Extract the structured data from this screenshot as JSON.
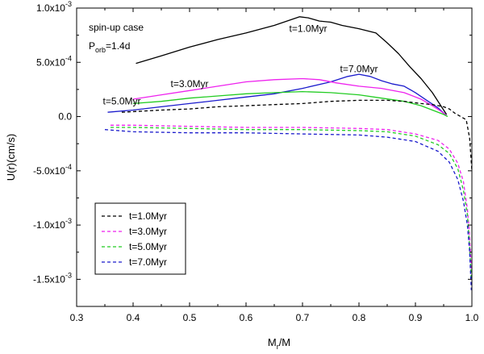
{
  "chart_data": {
    "type": "line",
    "xlabel_main": "M",
    "xlabel_sub": "r",
    "xlabel_tail": "/M",
    "ylabel": "U(r)(cm/s)",
    "xlim": [
      0.3,
      1.0
    ],
    "ylim": [
      -0.00175,
      0.001
    ],
    "x_ticks": [
      {
        "v": 0.3,
        "label": "0.3"
      },
      {
        "v": 0.4,
        "label": "0.4"
      },
      {
        "v": 0.5,
        "label": "0.5"
      },
      {
        "v": 0.6,
        "label": "0.6"
      },
      {
        "v": 0.7,
        "label": "0.7"
      },
      {
        "v": 0.8,
        "label": "0.8"
      },
      {
        "v": 0.9,
        "label": "0.9"
      },
      {
        "v": 1.0,
        "label": "1.0"
      }
    ],
    "y_ticks": [
      {
        "v": 0.001,
        "mant": "1.0x10",
        "exp": "-3"
      },
      {
        "v": 0.0005,
        "mant": "5.0x10",
        "exp": "-4"
      },
      {
        "v": 0.0,
        "mant": "0.0",
        "exp": ""
      },
      {
        "v": -0.0005,
        "mant": "-5.0x10",
        "exp": "-4"
      },
      {
        "v": -0.001,
        "mant": "-1.0x10",
        "exp": "-3"
      },
      {
        "v": -0.0015,
        "mant": "-1.5x10",
        "exp": "-3"
      }
    ],
    "case_label": "spin-up case",
    "porb_main": "P",
    "porb_sub": "orb",
    "porb_tail": "=1.4d",
    "annotations": [
      {
        "text": "t=1.0Myr",
        "x": 0.71,
        "y": 0.00078
      },
      {
        "text": "t=7.0Myr",
        "x": 0.8,
        "y": 0.00041
      },
      {
        "text": "t=3.0Myr",
        "x": 0.5,
        "y": 0.00027
      },
      {
        "text": "t=5.0Myr",
        "x": 0.38,
        "y": 0.00011
      }
    ],
    "series": [
      {
        "name": "t=1.0Myr",
        "color": "#000000",
        "style": "solid",
        "points": [
          [
            0.405,
            0.00049
          ],
          [
            0.45,
            0.00056
          ],
          [
            0.5,
            0.00064
          ],
          [
            0.55,
            0.00071
          ],
          [
            0.6,
            0.00077
          ],
          [
            0.65,
            0.00084
          ],
          [
            0.695,
            0.00092
          ],
          [
            0.71,
            0.00091
          ],
          [
            0.73,
            0.00088
          ],
          [
            0.75,
            0.00087
          ],
          [
            0.77,
            0.00084
          ],
          [
            0.8,
            0.00081
          ],
          [
            0.83,
            0.00077
          ],
          [
            0.85,
            0.00068
          ],
          [
            0.87,
            0.00058
          ],
          [
            0.89,
            0.00046
          ],
          [
            0.91,
            0.00035
          ],
          [
            0.93,
            0.00022
          ],
          [
            0.945,
            0.0001
          ],
          [
            0.955,
            2e-05
          ]
        ]
      },
      {
        "name": "t=7.0Myr",
        "color": "#1a1acc",
        "style": "solid",
        "points": [
          [
            0.355,
            4e-05
          ],
          [
            0.4,
            6e-05
          ],
          [
            0.45,
            9e-05
          ],
          [
            0.5,
            0.00012
          ],
          [
            0.55,
            0.00015
          ],
          [
            0.6,
            0.00018
          ],
          [
            0.65,
            0.00021
          ],
          [
            0.7,
            0.00026
          ],
          [
            0.75,
            0.00032
          ],
          [
            0.78,
            0.00037
          ],
          [
            0.8,
            0.00039
          ],
          [
            0.82,
            0.00037
          ],
          [
            0.84,
            0.00033
          ],
          [
            0.86,
            0.0003
          ],
          [
            0.88,
            0.00028
          ],
          [
            0.9,
            0.00022
          ],
          [
            0.92,
            0.00015
          ],
          [
            0.94,
            8e-05
          ],
          [
            0.955,
            1e-05
          ]
        ]
      },
      {
        "name": "t=3.0Myr",
        "color": "#ee22ee",
        "style": "solid",
        "points": [
          [
            0.4,
            0.00016
          ],
          [
            0.45,
            0.0002
          ],
          [
            0.5,
            0.00024
          ],
          [
            0.55,
            0.00028
          ],
          [
            0.6,
            0.00032
          ],
          [
            0.65,
            0.00034
          ],
          [
            0.7,
            0.00035
          ],
          [
            0.73,
            0.00034
          ],
          [
            0.76,
            0.00031
          ],
          [
            0.8,
            0.00028
          ],
          [
            0.84,
            0.00026
          ],
          [
            0.88,
            0.00022
          ],
          [
            0.91,
            0.00016
          ],
          [
            0.93,
            0.0001
          ],
          [
            0.945,
            5e-05
          ],
          [
            0.955,
            1e-05
          ]
        ]
      },
      {
        "name": "t=5.0Myr",
        "color": "#22cc22",
        "style": "solid",
        "points": [
          [
            0.4,
            0.00012
          ],
          [
            0.45,
            0.00014
          ],
          [
            0.5,
            0.00017
          ],
          [
            0.55,
            0.00019
          ],
          [
            0.6,
            0.00021
          ],
          [
            0.65,
            0.00022
          ],
          [
            0.7,
            0.00023
          ],
          [
            0.75,
            0.00022
          ],
          [
            0.8,
            0.0002
          ],
          [
            0.84,
            0.00017
          ],
          [
            0.88,
            0.00014
          ],
          [
            0.91,
            0.0001
          ],
          [
            0.93,
            6e-05
          ],
          [
            0.95,
            2e-05
          ],
          [
            0.957,
            0.0
          ]
        ]
      },
      {
        "name": "t=1.0Myr",
        "color": "#000000",
        "style": "dashed",
        "points": [
          [
            0.38,
            4e-05
          ],
          [
            0.45,
            6e-05
          ],
          [
            0.5,
            7e-05
          ],
          [
            0.55,
            9e-05
          ],
          [
            0.6,
            0.0001
          ],
          [
            0.65,
            0.00011
          ],
          [
            0.7,
            0.00012
          ],
          [
            0.75,
            0.00014
          ],
          [
            0.8,
            0.00015
          ],
          [
            0.85,
            0.00015
          ],
          [
            0.88,
            0.00014
          ],
          [
            0.91,
            0.00012
          ],
          [
            0.93,
            0.00011
          ],
          [
            0.95,
            9e-05
          ],
          [
            0.96,
            7e-05
          ],
          [
            0.97,
            3e-05
          ],
          [
            0.98,
            0.0
          ],
          [
            0.99,
            -3e-05
          ],
          [
            0.996,
            -0.0002
          ],
          [
            1.0,
            -0.0005
          ]
        ]
      },
      {
        "name": "t=3.0Myr",
        "color": "#ee22ee",
        "style": "dashed",
        "points": [
          [
            0.36,
            -8e-05
          ],
          [
            0.4,
            -8e-05
          ],
          [
            0.5,
            -9e-05
          ],
          [
            0.6,
            -0.0001
          ],
          [
            0.7,
            -0.0001
          ],
          [
            0.8,
            -0.00011
          ],
          [
            0.85,
            -0.00012
          ],
          [
            0.9,
            -0.00016
          ],
          [
            0.94,
            -0.00022
          ],
          [
            0.96,
            -0.0003
          ],
          [
            0.975,
            -0.00043
          ],
          [
            0.985,
            -0.0006
          ],
          [
            0.992,
            -0.00085
          ],
          [
            0.996,
            -0.0011
          ],
          [
            0.999,
            -0.0014
          ]
        ]
      },
      {
        "name": "t=5.0Myr",
        "color": "#22cc22",
        "style": "dashed",
        "points": [
          [
            0.36,
            -0.0001
          ],
          [
            0.4,
            -0.0001
          ],
          [
            0.5,
            -0.00011
          ],
          [
            0.6,
            -0.00012
          ],
          [
            0.7,
            -0.00012
          ],
          [
            0.8,
            -0.00013
          ],
          [
            0.85,
            -0.00014
          ],
          [
            0.9,
            -0.00018
          ],
          [
            0.94,
            -0.00026
          ],
          [
            0.96,
            -0.00034
          ],
          [
            0.975,
            -0.00048
          ],
          [
            0.985,
            -0.00068
          ],
          [
            0.992,
            -0.0009
          ],
          [
            0.996,
            -0.0012
          ],
          [
            0.999,
            -0.0015
          ]
        ]
      },
      {
        "name": "t=7.0Myr",
        "color": "#1a1acc",
        "style": "dashed",
        "points": [
          [
            0.35,
            -0.00012
          ],
          [
            0.4,
            -0.00014
          ],
          [
            0.5,
            -0.00015
          ],
          [
            0.6,
            -0.00015
          ],
          [
            0.7,
            -0.00016
          ],
          [
            0.8,
            -0.00017
          ],
          [
            0.85,
            -0.00019
          ],
          [
            0.9,
            -0.00023
          ],
          [
            0.94,
            -0.00032
          ],
          [
            0.96,
            -0.00042
          ],
          [
            0.975,
            -0.00058
          ],
          [
            0.985,
            -0.00078
          ],
          [
            0.992,
            -0.001
          ],
          [
            0.996,
            -0.00125
          ],
          [
            0.999,
            -0.0016
          ]
        ]
      }
    ],
    "legend": {
      "placement": "bottom-left",
      "entries": [
        {
          "label": "t=1.0Myr",
          "color": "#000000"
        },
        {
          "label": "t=3.0Myr",
          "color": "#ee22ee"
        },
        {
          "label": "t=5.0Myr",
          "color": "#22cc22"
        },
        {
          "label": "t=7.0Myr",
          "color": "#1a1acc"
        }
      ]
    }
  }
}
